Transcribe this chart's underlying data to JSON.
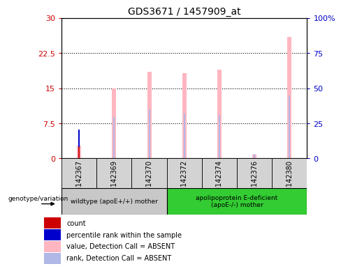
{
  "title": "GDS3671 / 1457909_at",
  "samples": [
    "GSM142367",
    "GSM142369",
    "GSM142370",
    "GSM142372",
    "GSM142374",
    "GSM142376",
    "GSM142380"
  ],
  "left_ylim": [
    0,
    30
  ],
  "left_yticks": [
    0,
    7.5,
    15,
    22.5,
    30
  ],
  "right_ylim": [
    0,
    100
  ],
  "right_yticks": [
    0,
    25,
    50,
    75,
    100
  ],
  "left_tick_color": "#cc0000",
  "right_tick_color": "#0000cc",
  "pink_bar_color": "#ffb6c1",
  "light_blue_bar_color": "#b0b8e8",
  "red_bar_color": "#cc0000",
  "blue_bar_color": "#0000cc",
  "value_bars": {
    "GSM142367": 2.8,
    "GSM142369": 15.0,
    "GSM142370": 18.5,
    "GSM142372": 18.2,
    "GSM142374": 19.0,
    "GSM142376": 0.8,
    "GSM142380": 26.0
  },
  "rank_bars": {
    "GSM142367": 3.7,
    "GSM142369": 8.8,
    "GSM142370": 10.5,
    "GSM142372": 9.6,
    "GSM142374": 9.2,
    "GSM142376": 1.0,
    "GSM142380": 13.5
  },
  "count_bars": {
    "GSM142367": 2.5,
    "GSM142369": 0,
    "GSM142370": 0,
    "GSM142372": 0,
    "GSM142374": 0,
    "GSM142376": 0,
    "GSM142380": 0
  },
  "percentile_bars": {
    "GSM142367": 3.7,
    "GSM142369": 0,
    "GSM142370": 0,
    "GSM142372": 0,
    "GSM142374": 0,
    "GSM142376": 0,
    "GSM142380": 0
  },
  "group1_label": "wildtype (apoE+/+) mother",
  "group1_color": "#c8c8c8",
  "group1_count": 3,
  "group2_label": "apolipoprotein E-deficient\n(apoE-/-) mother",
  "group2_color": "#33cc33",
  "group2_count": 4,
  "legend_items": [
    {
      "color": "#cc0000",
      "label": "count"
    },
    {
      "color": "#0000cc",
      "label": "percentile rank within the sample"
    },
    {
      "color": "#ffb6c1",
      "label": "value, Detection Call = ABSENT"
    },
    {
      "color": "#b0b8e8",
      "label": "rank, Detection Call = ABSENT"
    }
  ],
  "pink_bar_width": 0.12,
  "thin_bar_width": 0.04,
  "ylabel_left_fontsize": 8,
  "ylabel_right_fontsize": 8,
  "xtick_fontsize": 7,
  "title_fontsize": 10
}
